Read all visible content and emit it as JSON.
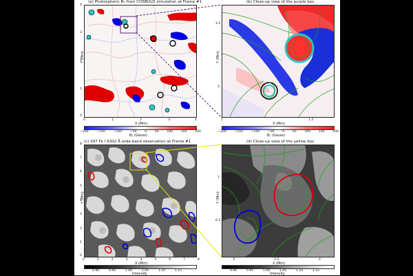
{
  "panels": {
    "a": {
      "title": "(a) Photospheric Bᵧ from CO5BOLD simulation at Frame #1",
      "xlabel": "X (Mm)",
      "ylabel": "Y (Mm)",
      "xticks": [
        "0",
        "1",
        "2",
        "3",
        "4"
      ],
      "yticks": [
        "4",
        "3",
        "2",
        "1",
        "0"
      ],
      "cbar_ticks": [
        "−200",
        "−150",
        "−100",
        "−50",
        "0",
        "50",
        "100",
        "150",
        "200"
      ],
      "cbar_label": "Bᵧ (Gauss)"
    },
    "b": {
      "title": "(b) Close-up view of the purple box",
      "xlabel": "X (Mm)",
      "ylabel": "Y (Mm)",
      "xticks": [
        "1",
        "1.5"
      ],
      "yticks": [
        "3.5",
        "3"
      ],
      "cbar_ticks": [
        "−200",
        "−150",
        "−100",
        "−50",
        "0",
        "50",
        "100",
        "150",
        "200"
      ],
      "cbar_label": "Bᵧ (Gauss)"
    },
    "c": {
      "title": "(c) SST Fe I 6302 Å wide-band observation at Frame #1",
      "xlabel": "X (Mm)",
      "ylabel": "Y (Mm)",
      "xticks": [
        "0",
        "1",
        "2",
        "3",
        "4",
        "5",
        "6",
        "7",
        "8"
      ],
      "yticks": [
        "8",
        "7",
        "6",
        "5",
        "4",
        "3",
        "2",
        "1",
        "0"
      ],
      "cbar_ticks": [
        "0.90",
        "0.95",
        "1.00",
        "1.05",
        "1.10",
        "1.15"
      ],
      "cbar_label": "Intensity"
    },
    "d": {
      "title": "(d) Close-up view of the yellow box",
      "xlabel": "X (Mm)",
      "ylabel": "Y (Mm)",
      "xticks": [
        "3",
        "3.5",
        "4"
      ],
      "yticks": [
        "7",
        "6.5"
      ],
      "cbar_ticks": [
        "0.90",
        "0.95",
        "1.00",
        "1.05",
        "1.10",
        "1.15"
      ],
      "cbar_label": "Intensity"
    }
  },
  "colors": {
    "positive": "#e00000",
    "negative": "#0000dd",
    "streamline": "#1e9e1e",
    "box_a": "#5a1f7a",
    "box_c": "#e6e600",
    "vortex_fill": "#2ec4c4",
    "detection": "#000000"
  }
}
